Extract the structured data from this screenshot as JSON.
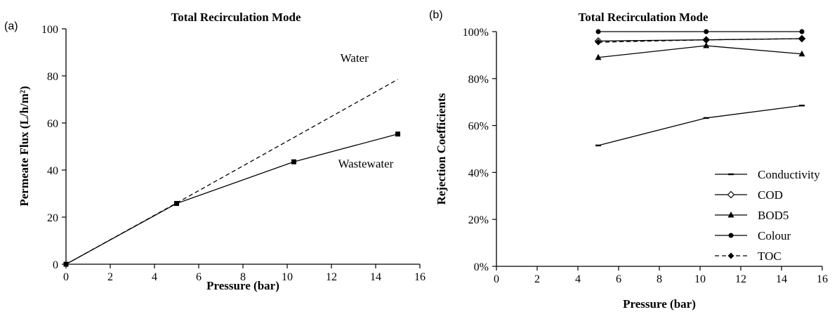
{
  "chart_data": [
    {
      "panel_label": "(a)",
      "type": "line",
      "title": "Total Recirculation Mode",
      "xlabel": "Pressure (bar)",
      "ylabel": "Permeate Flux (L/h/m²)",
      "xlim": [
        0,
        16
      ],
      "ylim": [
        0,
        100
      ],
      "xticks": [
        0,
        2,
        4,
        6,
        8,
        10,
        12,
        14,
        16
      ],
      "yticks": [
        0,
        20,
        40,
        60,
        80,
        100
      ],
      "grid": false,
      "series": [
        {
          "name": "Water",
          "style": "dashed",
          "marker": "none",
          "x": [
            0,
            5,
            15
          ],
          "y": [
            0,
            26,
            78.5
          ]
        },
        {
          "name": "Wastewater",
          "style": "solid",
          "marker": "square",
          "x": [
            0,
            5,
            10.3,
            15
          ],
          "y": [
            0,
            25.8,
            43.5,
            55.3
          ]
        }
      ],
      "annotations": [
        {
          "text": "Water",
          "x": 12.4,
          "y": 86
        },
        {
          "text": "Wastewater",
          "x": 12.3,
          "y": 41
        }
      ]
    },
    {
      "panel_label": "(b)",
      "type": "line",
      "title": "Total Recirculation Mode",
      "xlabel": "Pressure (bar)",
      "ylabel": "Rejection Coefficients",
      "xlim": [
        0,
        16
      ],
      "ylim": [
        0,
        100
      ],
      "xticks": [
        0,
        2,
        4,
        6,
        8,
        10,
        12,
        14,
        16
      ],
      "yticks": [
        0,
        20,
        40,
        60,
        80,
        100
      ],
      "ytick_labels": [
        "0%",
        "20%",
        "40%",
        "60%",
        "80%",
        "100%"
      ],
      "grid": false,
      "legend_position": "bottom-right",
      "series": [
        {
          "name": "Conductivity",
          "style": "solid",
          "marker": "dash",
          "x": [
            5,
            10.3,
            15
          ],
          "y": [
            51.5,
            63.2,
            68.5
          ]
        },
        {
          "name": "COD",
          "style": "solid",
          "marker": "diamond-open",
          "x": [
            5,
            10.3,
            15
          ],
          "y": [
            96,
            96.5,
            97
          ]
        },
        {
          "name": "BOD5",
          "style": "solid",
          "marker": "triangle",
          "x": [
            5,
            10.3,
            15
          ],
          "y": [
            89,
            94,
            90.5
          ]
        },
        {
          "name": "Colour",
          "style": "solid",
          "marker": "circle",
          "x": [
            5,
            10.3,
            15
          ],
          "y": [
            100,
            100,
            100
          ]
        },
        {
          "name": "TOC",
          "style": "dashed",
          "marker": "diamond",
          "x": [
            5,
            10.3,
            15
          ],
          "y": [
            95.5,
            96.5,
            97
          ]
        }
      ]
    }
  ]
}
